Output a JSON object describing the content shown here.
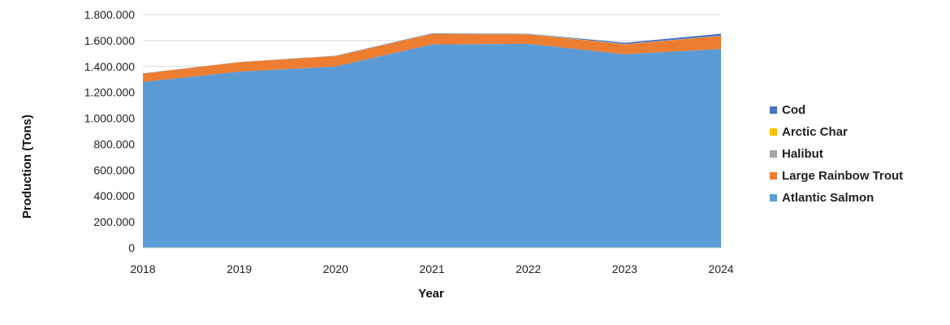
{
  "chart_data": {
    "type": "area",
    "stacked": true,
    "title": "",
    "xlabel": "Year",
    "ylabel": "Production (Tons)",
    "x": [
      "2018",
      "2019",
      "2020",
      "2021",
      "2022",
      "2023",
      "2024"
    ],
    "ylim": [
      0,
      1800000
    ],
    "yticks": [
      "0",
      "200.000",
      "400.000",
      "600.000",
      "800.000",
      "1.000.000",
      "1.200.000",
      "1.400.000",
      "1.600.000",
      "1.800.000"
    ],
    "ytick_values": [
      0,
      200000,
      400000,
      600000,
      800000,
      1000000,
      1200000,
      1400000,
      1600000,
      1800000
    ],
    "grid": true,
    "legend_position": "right",
    "series": [
      {
        "name": "Atlantic Salmon",
        "color": "#5b9bd5",
        "values": [
          1280000,
          1360000,
          1400000,
          1570000,
          1575000,
          1495000,
          1535000
        ]
      },
      {
        "name": "Large Rainbow Trout",
        "color": "#ed7d31",
        "values": [
          65000,
          72000,
          80000,
          80000,
          72000,
          75000,
          100000
        ]
      },
      {
        "name": "Halibut",
        "color": "#a5a5a5",
        "values": [
          1500,
          1500,
          1500,
          2000,
          2000,
          2000,
          2000
        ]
      },
      {
        "name": "Arctic Char",
        "color": "#ffc000",
        "values": [
          500,
          500,
          500,
          1000,
          1000,
          1000,
          1000
        ]
      },
      {
        "name": "Cod",
        "color": "#4472c4",
        "values": [
          1000,
          1000,
          1000,
          3000,
          3000,
          10000,
          15000
        ]
      }
    ],
    "legend_order": [
      "Cod",
      "Arctic Char",
      "Halibut",
      "Large Rainbow Trout",
      "Atlantic Salmon"
    ]
  }
}
